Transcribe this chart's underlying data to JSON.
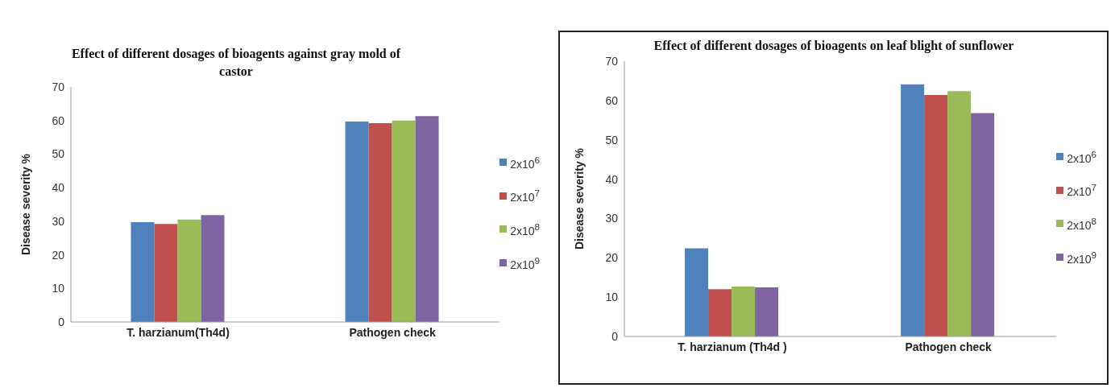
{
  "chart_data": [
    {
      "type": "bar",
      "title": "Effect of different dosages of bioagents against gray mold  of castor",
      "ylabel": "Disease severity  %",
      "categories": [
        "T. harzianum(Th4d)",
        "Pathogen check"
      ],
      "series": [
        {
          "name": "2x10$^{6}$",
          "color": "#4f81bd",
          "values": [
            29.7,
            59.7
          ]
        },
        {
          "name": "2x10$^{7}$",
          "color": "#c0504d",
          "values": [
            29.2,
            59.2
          ]
        },
        {
          "name": "2x10$^{8}$",
          "color": "#9bbb59",
          "values": [
            30.5,
            60.0
          ]
        },
        {
          "name": "2x10$^{9}$",
          "color": "#8064a2",
          "values": [
            31.8,
            61.3
          ]
        }
      ],
      "ylim": [
        0,
        70
      ],
      "yticks": [
        0,
        10,
        20,
        30,
        40,
        50,
        60,
        70
      ],
      "grid": false,
      "legend": "right"
    },
    {
      "type": "bar",
      "title": "Effect of different dosages of bioagents on leaf blight of sunflower",
      "ylabel": "Disease severity %",
      "categories": [
        "T. harzianum  (Th4d )",
        "Pathogen check"
      ],
      "series": [
        {
          "name": "2x10$^{6}$",
          "color": "#4f81bd",
          "values": [
            22.4,
            64.1
          ]
        },
        {
          "name": "2x10$^{7}$",
          "color": "#c0504d",
          "values": [
            12.0,
            61.4
          ]
        },
        {
          "name": "2x10$^{8}$",
          "color": "#9bbb59",
          "values": [
            12.7,
            62.4
          ]
        },
        {
          "name": "2x10$^{9}$",
          "color": "#8064a2",
          "values": [
            12.5,
            56.8
          ]
        }
      ],
      "ylim": [
        0,
        70
      ],
      "yticks": [
        0,
        10,
        20,
        30,
        40,
        50,
        60,
        70
      ],
      "grid": false,
      "legend": "right"
    }
  ]
}
